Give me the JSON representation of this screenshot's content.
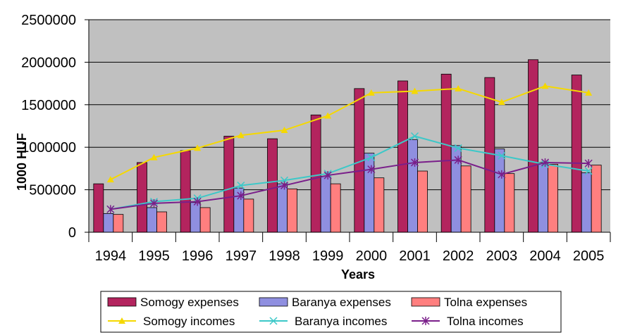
{
  "chart_data": {
    "type": "bar",
    "title": "",
    "xlabel": "Years",
    "ylabel": "1000 HUF",
    "ylim": [
      0,
      2500000
    ],
    "yticks": [
      0,
      500000,
      1000000,
      1500000,
      2000000,
      2500000
    ],
    "categories": [
      "1994",
      "1995",
      "1996",
      "1997",
      "1998",
      "1999",
      "2000",
      "2001",
      "2002",
      "2003",
      "2004",
      "2005"
    ],
    "grid": true,
    "legend_position": "bottom",
    "series": [
      {
        "name": "Somogy expenses",
        "kind": "bar",
        "color": "#b3245e",
        "values": [
          570000,
          820000,
          960000,
          1130000,
          1100000,
          1380000,
          1690000,
          1780000,
          1860000,
          1820000,
          2030000,
          1850000
        ]
      },
      {
        "name": "Baranya expenses",
        "kind": "bar",
        "color": "#8f8fe0",
        "values": [
          220000,
          290000,
          350000,
          520000,
          570000,
          660000,
          930000,
          1090000,
          1020000,
          980000,
          820000,
          700000
        ]
      },
      {
        "name": "Tolna expenses",
        "kind": "bar",
        "color": "#ff7f7f",
        "values": [
          210000,
          240000,
          290000,
          390000,
          510000,
          570000,
          640000,
          720000,
          780000,
          690000,
          800000,
          790000
        ]
      },
      {
        "name": "Somogy incomes",
        "kind": "line",
        "marker": "triangle",
        "color": "#f5d800",
        "values": [
          620000,
          880000,
          990000,
          1140000,
          1200000,
          1370000,
          1640000,
          1660000,
          1690000,
          1530000,
          1720000,
          1640000
        ]
      },
      {
        "name": "Baranya incomes",
        "kind": "line",
        "marker": "x",
        "color": "#3cc8c8",
        "values": [
          270000,
          360000,
          400000,
          550000,
          610000,
          690000,
          880000,
          1130000,
          990000,
          900000,
          800000,
          720000
        ]
      },
      {
        "name": "Tolna incomes",
        "kind": "line",
        "marker": "star",
        "color": "#7a1f8a",
        "values": [
          270000,
          340000,
          360000,
          430000,
          550000,
          670000,
          740000,
          820000,
          850000,
          680000,
          820000,
          810000
        ]
      }
    ]
  }
}
